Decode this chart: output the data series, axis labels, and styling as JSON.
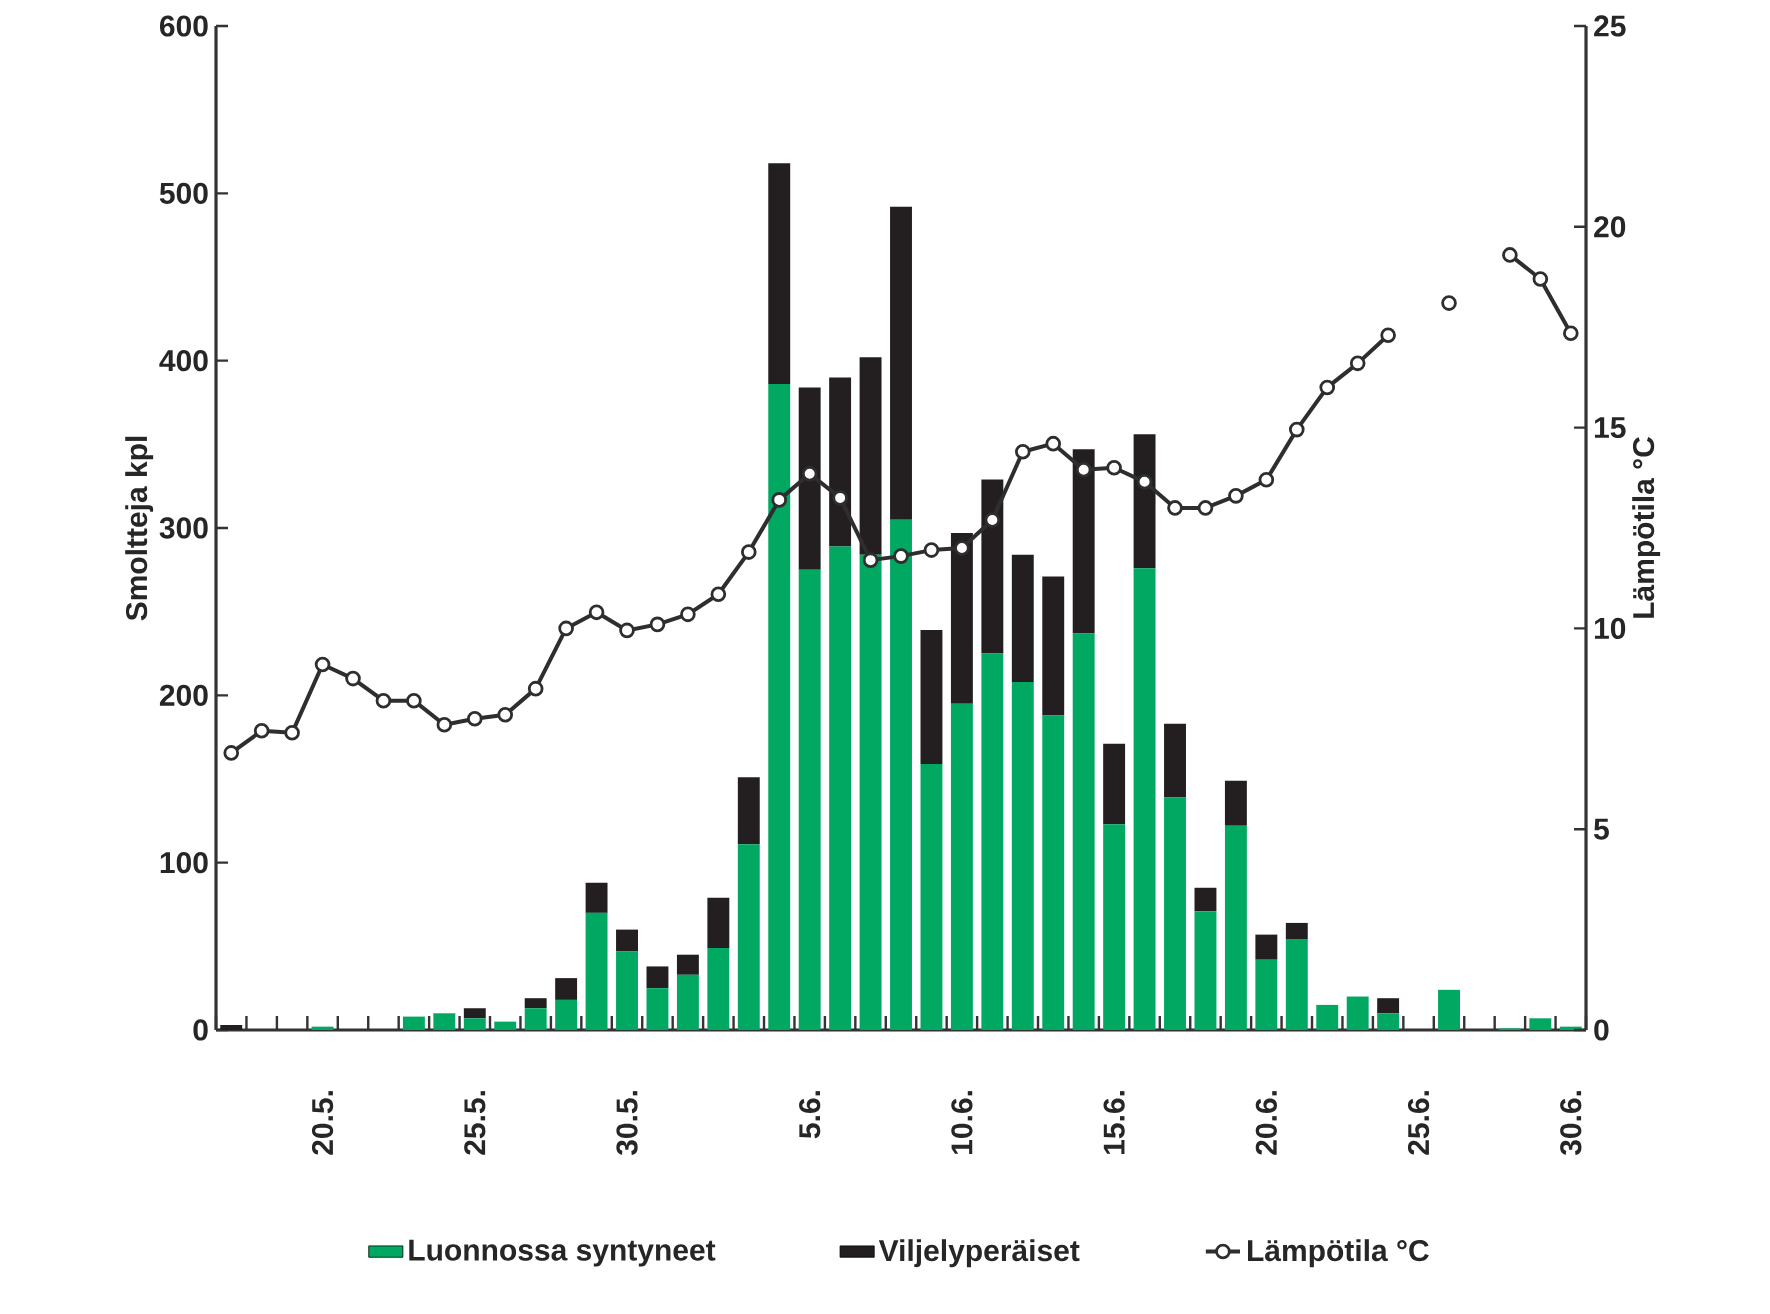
{
  "chart_data": {
    "type": "bar",
    "stacked": true,
    "ylabel": "Smoltteja kpl",
    "y2label": "Lämpötila °C",
    "categories": [
      null,
      null,
      null,
      "20.5.",
      null,
      null,
      null,
      null,
      "25.5.",
      null,
      null,
      null,
      null,
      "30.5.",
      null,
      null,
      null,
      null,
      null,
      "5.6.",
      null,
      null,
      null,
      null,
      "10.6.",
      null,
      null,
      null,
      null,
      "15.6.",
      null,
      null,
      null,
      null,
      "20.6.",
      null,
      null,
      null,
      null,
      "25.6.",
      null,
      null,
      null,
      null,
      "30.6."
    ],
    "series": [
      {
        "name": "Luonnossa syntyneet",
        "color": "#00a862",
        "values": [
          0,
          0,
          0,
          2,
          0,
          0,
          8,
          10,
          7,
          5,
          13,
          18,
          70,
          47,
          25,
          33,
          49,
          111,
          386,
          275,
          289,
          284,
          305,
          159,
          195,
          225,
          208,
          188,
          237,
          123,
          276,
          139,
          71,
          122,
          42,
          54,
          15,
          20,
          10,
          0,
          24,
          0,
          1,
          7,
          2
        ]
      },
      {
        "name": "Viljelyperäiset",
        "color": "#231f20",
        "values": [
          3,
          0,
          0,
          0,
          0,
          0,
          0,
          0,
          6,
          0,
          6,
          13,
          18,
          13,
          13,
          12,
          30,
          40,
          132,
          109,
          101,
          118,
          187,
          80,
          102,
          104,
          76,
          83,
          110,
          48,
          80,
          44,
          14,
          27,
          15,
          10,
          0,
          0,
          9,
          0,
          0,
          0,
          0,
          0,
          0
        ]
      },
      {
        "name": "Lämpötila °C",
        "type": "line",
        "axis": "y2",
        "color": "#2e2e2e",
        "values": [
          6.9,
          7.45,
          7.4,
          9.1,
          8.75,
          8.2,
          8.2,
          7.6,
          7.75,
          7.85,
          8.5,
          10.0,
          10.4,
          9.95,
          10.1,
          10.35,
          10.85,
          11.9,
          13.2,
          13.85,
          13.25,
          11.7,
          11.8,
          11.95,
          12.0,
          12.7,
          14.4,
          14.6,
          13.95,
          14.0,
          13.65,
          13.0,
          13.0,
          13.3,
          13.7,
          14.95,
          16.0,
          16.6,
          17.3,
          null,
          18.1,
          null,
          19.3,
          18.7,
          17.35
        ]
      }
    ],
    "marker": "circle",
    "legend": "bottom",
    "ylim": [
      0,
      600
    ],
    "yticks": [
      0,
      100,
      200,
      300,
      400,
      500,
      600
    ],
    "y2lim": [
      0,
      25
    ],
    "y2ticks": [
      0,
      5,
      10,
      15,
      20,
      25
    ]
  }
}
